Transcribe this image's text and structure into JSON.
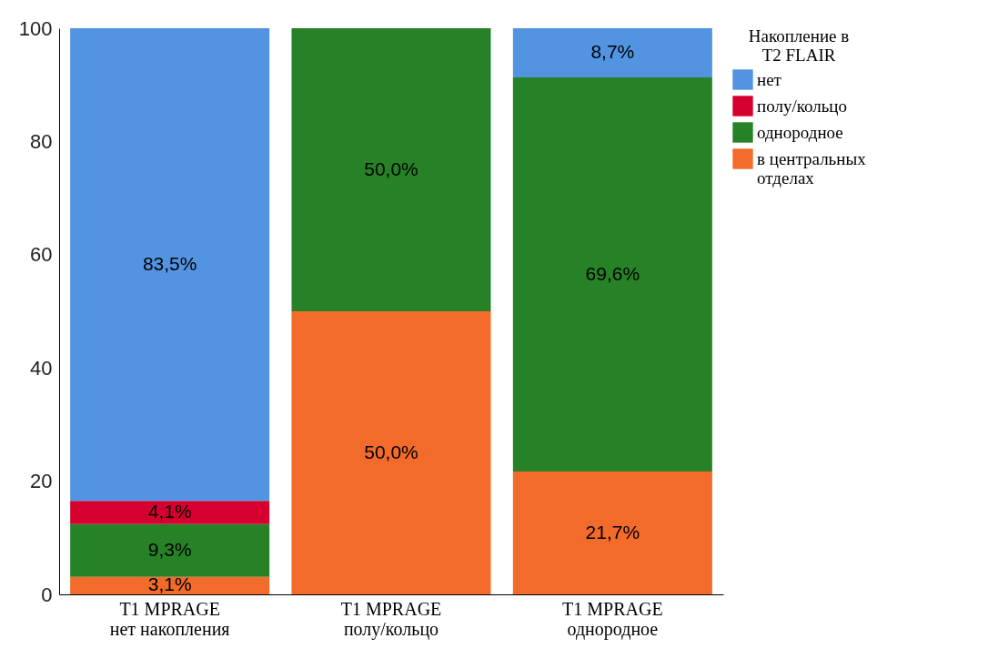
{
  "chart_data": {
    "type": "bar",
    "stacked": true,
    "categories": [
      "T1 MPRAGE\nнет накопления",
      "T1 MPRAGE\nполу/кольцо",
      "T1 MPRAGE\nоднородное"
    ],
    "legend_title": "Накопление в\nT2 FLAIR",
    "series": [
      {
        "name": "в центральных\nотделах",
        "color": "#f26b2b",
        "values": [
          3.1,
          50.0,
          21.7
        ],
        "value_labels": [
          "3,1%",
          "50,0%",
          "21,7%"
        ]
      },
      {
        "name": "однородное",
        "color": "#278227",
        "values": [
          9.3,
          50.0,
          69.6
        ],
        "value_labels": [
          "9,3%",
          "50,0%",
          "69,6%"
        ]
      },
      {
        "name": "полу/кольцо",
        "color": "#d6002f",
        "values": [
          4.1,
          null,
          null
        ],
        "value_labels": [
          "4,1%",
          null,
          null
        ]
      },
      {
        "name": "нет",
        "color": "#5294e2",
        "values": [
          83.5,
          null,
          8.7
        ],
        "value_labels": [
          "83,5%",
          null,
          "8,7%"
        ]
      }
    ],
    "ylim": [
      0,
      100
    ],
    "yticks": [
      0,
      20,
      40,
      60,
      80,
      100
    ],
    "grid": false,
    "legend": "right"
  }
}
